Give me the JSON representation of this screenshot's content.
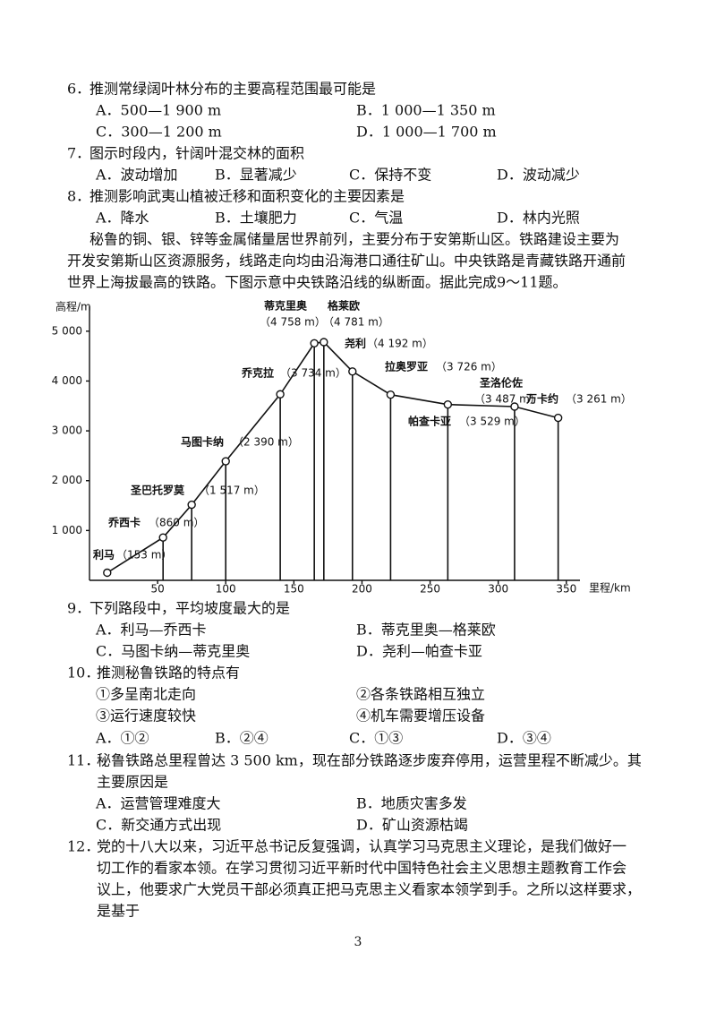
{
  "questions": [
    {
      "number": "6．",
      "stem": "推测常绿阔叶林分布的主要高程范围最可能是",
      "options": [
        "A．500—1 900 m",
        "B．1 000—1 350 m",
        "C．300—1 200 m",
        "D．1 000—1 700 m"
      ]
    },
    {
      "number": "7．",
      "stem": "图示时段内，针阔叶混交林的面积",
      "options": [
        "A．波动增加",
        "B．显著减少",
        "C．保持不变",
        "D．波动减少"
      ]
    },
    {
      "number": "8．",
      "stem": "推测影响武夷山植被迁移和面积变化的主要因素是",
      "options": [
        "A．降水",
        "B．土壤肥力",
        "C．气温",
        "D．林内光照"
      ]
    }
  ],
  "passage": [
    "秘鲁的铜、银、锌等金属储量居世界前列，主要分布于安第斯山区。铁路建设主要为",
    "开发安第斯山区资源服务，线路走向均由沿海港口通往矿山。中央铁路是青藏铁路开通前",
    "世界上海拔最高的铁路。下图示意中央铁路沿线的纵断面。据此完成9～11题。"
  ],
  "chart_data": {
    "type": "line",
    "ylabel": "高程/m",
    "xlabel": "里程/km",
    "point_labels": [
      "利马",
      "乔西卡",
      "圣巴托罗莫",
      "马图卡纳",
      "乔克拉",
      "蒂克里奥",
      "格莱欧",
      "尧利",
      "拉奥罗亚",
      "帕查卡亚",
      "圣洛伦佐",
      "万卡约"
    ],
    "x": [
      13,
      54,
      75,
      100,
      140,
      165,
      172,
      193,
      221,
      263,
      312,
      344
    ],
    "values": [
      153,
      860,
      1517,
      2390,
      3734,
      4758,
      4781,
      4192,
      3726,
      3529,
      3487,
      3261
    ],
    "value_labels": [
      "（153 m）",
      "（860 m）",
      "（1 517 m）",
      "（2 390 m）",
      "（3 734 m）",
      "（4 758 m）",
      "（4 781 m）",
      "（4 192 m）",
      "（3 726 m）",
      "（3 529 m）",
      "（3 487 m）",
      "（3 261 m）"
    ],
    "color": "#111111",
    "xlim": [
      0,
      360
    ],
    "ylim": [
      0,
      5500
    ],
    "xticks": [
      50,
      100,
      150,
      200,
      250,
      300,
      350
    ],
    "yticks": [
      {
        "value": 1000,
        "label": "1 000"
      },
      {
        "value": 2000,
        "label": "2 000"
      },
      {
        "value": 3000,
        "label": "3 000"
      },
      {
        "value": 4000,
        "label": "4 000"
      },
      {
        "value": 5000,
        "label": "5 000"
      }
    ],
    "grid": false
  },
  "questions2": [
    {
      "number": "9．",
      "stem_lines": [
        "下列路段中，平均坡度最大的是"
      ],
      "options": [
        "A．利马—乔西卡",
        "B．蒂克里奥—格莱欧",
        "C．马图卡纳—蒂克里奥",
        "D．尧利—帕查卡亚"
      ]
    },
    {
      "number": "10．",
      "stem_lines": [
        "推测秘鲁铁路的特点有"
      ],
      "items": [
        "①多呈南北走向",
        "②各条铁路相互独立",
        "③运行速度较快",
        "④机车需要增压设备"
      ],
      "options": [
        "A．①②",
        "B．②④",
        "C．①③",
        "D．③④"
      ]
    },
    {
      "number": "11．",
      "stem_lines": [
        "秘鲁铁路总里程曾达 3 500 km，现在部分铁路逐步废弃停用，运营里程不断减少。其",
        "主要原因是"
      ],
      "options": [
        "A．运营管理难度大",
        "B．地质灾害多发",
        "C．新交通方式出现",
        "D．矿山资源枯竭"
      ]
    },
    {
      "number": "12．",
      "stem_lines": [
        "党的十八大以来，习近平总书记反复强调，认真学习马克思主义理论，是我们做好一",
        "切工作的看家本领。在学习贯彻习近平新时代中国特色社会主义思想主题教育工作会",
        "议上，他要求广大党员干部必须真正把马克思主义看家本领学到手。之所以这样要求，",
        "是基于"
      ]
    }
  ],
  "page_number": "3"
}
